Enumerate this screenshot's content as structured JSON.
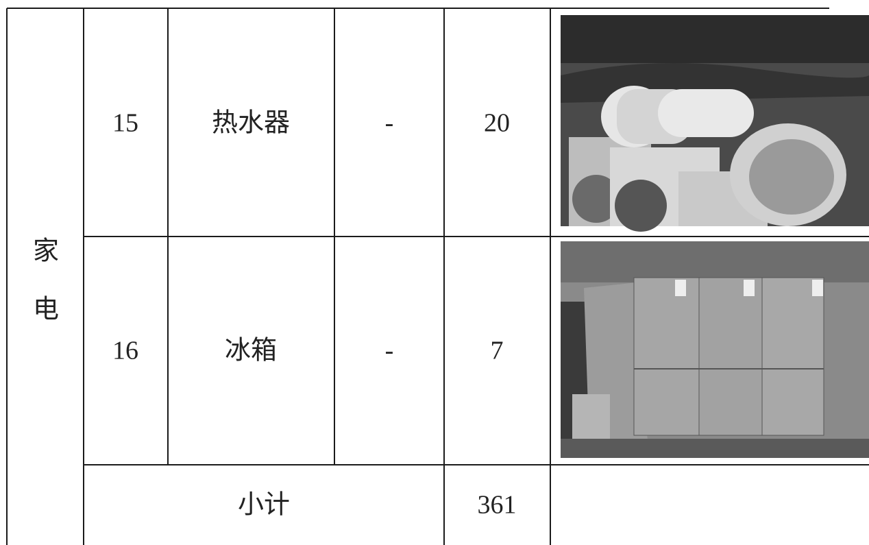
{
  "table": {
    "category": [
      "家",
      "电"
    ],
    "rows": [
      {
        "index": 15,
        "name": "热水器",
        "spec": "-",
        "quantity": 20
      },
      {
        "index": 16,
        "name": "冰箱",
        "spec": "-",
        "quantity": 7
      }
    ],
    "subtotal": {
      "label": "小计",
      "quantity": 361
    }
  }
}
